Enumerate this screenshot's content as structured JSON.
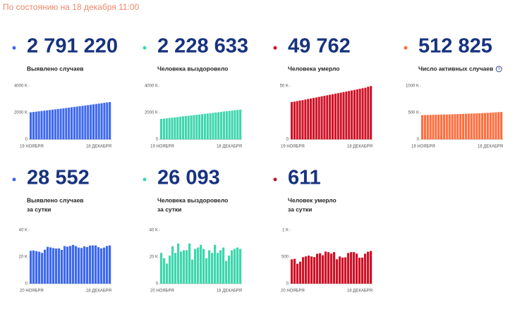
{
  "header": "По состоянию на 18 декабря 11:00",
  "chart_data": [
    {
      "type": "bar",
      "total": "2 791 220",
      "subtitle_lines": [
        "Выявлено случаев"
      ],
      "color": "#3d68f0",
      "categories": [
        "19 НОЯБРЯ",
        null,
        null,
        null,
        null,
        null,
        null,
        null,
        null,
        null,
        null,
        null,
        null,
        null,
        null,
        null,
        null,
        null,
        null,
        null,
        null,
        null,
        null,
        null,
        null,
        null,
        null,
        null,
        null,
        "18 ДЕКАБРЯ"
      ],
      "values": [
        2023,
        2048,
        2072,
        2096,
        2121,
        2145,
        2170,
        2195,
        2220,
        2245,
        2270,
        2295,
        2321,
        2347,
        2373,
        2400,
        2427,
        2453,
        2480,
        2507,
        2535,
        2562,
        2590,
        2618,
        2646,
        2674,
        2703,
        2733,
        2762,
        2791
      ],
      "ylim": [
        0,
        4000
      ],
      "yticks": [
        0,
        {
          "value": 2000,
          "label": "2000 K"
        },
        {
          "value": 4000,
          "label": "4000 K"
        }
      ]
    },
    {
      "type": "bar",
      "total": "2 228 633",
      "subtitle_lines": [
        "Человека выздоровело"
      ],
      "color": "#3ed6ad",
      "categories": [
        "19 НОЯБРЯ",
        null,
        null,
        null,
        null,
        null,
        null,
        null,
        null,
        null,
        null,
        null,
        null,
        null,
        null,
        null,
        null,
        null,
        null,
        null,
        null,
        null,
        null,
        null,
        null,
        null,
        null,
        null,
        null,
        "18 ДЕКАБРЯ"
      ],
      "values": [
        1528,
        1551,
        1575,
        1598,
        1622,
        1646,
        1670,
        1694,
        1718,
        1742,
        1766,
        1790,
        1814,
        1838,
        1862,
        1886,
        1910,
        1934,
        1958,
        1983,
        2008,
        2033,
        2058,
        2083,
        2107,
        2132,
        2156,
        2181,
        2205,
        2229
      ],
      "ylim": [
        0,
        4000
      ],
      "yticks": [
        0,
        {
          "value": 2000,
          "label": "2000 K"
        },
        {
          "value": 4000,
          "label": "4000 K"
        }
      ]
    },
    {
      "type": "bar",
      "total": "49 762",
      "subtitle_lines": [
        "Человека умерло"
      ],
      "color": "#cf1126",
      "categories": [
        "19 НОЯБРЯ",
        null,
        null,
        null,
        null,
        null,
        null,
        null,
        null,
        null,
        null,
        null,
        null,
        null,
        null,
        null,
        null,
        null,
        null,
        null,
        null,
        null,
        null,
        null,
        null,
        null,
        null,
        null,
        null,
        "18 ДЕКАБРЯ"
      ],
      "values": [
        34.9,
        35.3,
        35.8,
        36.3,
        36.7,
        37.2,
        37.7,
        38.2,
        38.7,
        39.2,
        39.7,
        40.2,
        40.7,
        41.2,
        41.7,
        42.2,
        42.7,
        43.2,
        43.7,
        44.2,
        44.7,
        45.2,
        45.7,
        46.2,
        46.8,
        47.3,
        47.8,
        48.3,
        49.2,
        49.8
      ],
      "ylim": [
        0,
        50
      ],
      "yticks": [
        0,
        {
          "value": 50,
          "label": "50 K"
        }
      ]
    },
    {
      "type": "bar",
      "total": "512 825",
      "subtitle_lines": [
        "Число активных случаев"
      ],
      "color": "#ff6d3f",
      "categories": [
        "19 НОЯБРЯ",
        null,
        null,
        null,
        null,
        null,
        null,
        null,
        null,
        null,
        null,
        null,
        null,
        null,
        null,
        null,
        null,
        null,
        null,
        null,
        null,
        null,
        null,
        null,
        null,
        null,
        null,
        null,
        null,
        "18 ДЕКАБРЯ"
      ],
      "values": [
        453,
        455,
        457,
        458,
        459,
        461,
        462,
        464,
        465,
        466,
        468,
        469,
        471,
        473,
        475,
        477,
        479,
        481,
        483,
        485,
        487,
        489,
        491,
        494,
        497,
        500,
        503,
        506,
        509,
        513
      ],
      "ylim": [
        0,
        1000
      ],
      "yticks": [
        0,
        {
          "value": 500,
          "label": "500 K"
        },
        {
          "value": 1000,
          "label": "1000 K"
        }
      ]
    },
    {
      "type": "bar",
      "total": "28 552",
      "subtitle_lines": [
        "Выявлено случаев",
        "за сутки"
      ],
      "color": "#3d68f0",
      "categories": [
        "20 НОЯБРЯ",
        null,
        null,
        null,
        null,
        null,
        null,
        null,
        null,
        null,
        null,
        null,
        null,
        null,
        null,
        null,
        null,
        null,
        null,
        null,
        null,
        null,
        null,
        null,
        null,
        null,
        null,
        null,
        "18 ДЕКАБРЯ"
      ],
      "values": [
        24.6,
        24.8,
        24.3,
        23.9,
        23.0,
        25.4,
        27.5,
        27.1,
        26.6,
        26.3,
        26.4,
        25.3,
        28.1,
        27.7,
        28.2,
        29.0,
        28.1,
        27.0,
        26.7,
        27.9,
        27.4,
        28.5,
        28.6,
        28.6,
        27.3,
        26.4,
        27.0,
        28.2,
        28.6
      ],
      "ylim": [
        0,
        40
      ],
      "yticks": [
        0,
        {
          "value": 20,
          "label": "20 K"
        },
        {
          "value": 40,
          "label": "40 K"
        }
      ]
    },
    {
      "type": "bar",
      "total": "26 093",
      "subtitle_lines": [
        "Человека выздоровело",
        "за сутки"
      ],
      "color": "#3ed6ad",
      "categories": [
        "20 НОЯБРЯ",
        null,
        null,
        null,
        null,
        null,
        null,
        null,
        null,
        null,
        null,
        null,
        null,
        null,
        null,
        null,
        null,
        null,
        null,
        null,
        null,
        null,
        null,
        null,
        null,
        null,
        null,
        null,
        "18 ДЕКАБРЯ"
      ],
      "values": [
        23,
        19,
        15,
        21,
        28,
        23,
        30,
        24,
        25,
        25,
        30,
        18,
        26,
        27,
        29,
        26,
        19,
        25,
        23,
        29,
        23,
        25,
        27,
        17,
        21,
        25,
        26,
        27,
        26
      ],
      "ylim": [
        0,
        40
      ],
      "yticks": [
        0,
        {
          "value": 20,
          "label": "20 K"
        },
        {
          "value": 40,
          "label": "40 K"
        }
      ]
    },
    {
      "type": "bar",
      "total": "611",
      "subtitle_lines": [
        "Человек умерло",
        "за сутки"
      ],
      "color": "#cf1126",
      "categories": [
        "20 НОЯБРЯ",
        null,
        null,
        null,
        null,
        null,
        null,
        null,
        null,
        null,
        null,
        null,
        null,
        null,
        null,
        null,
        null,
        null,
        null,
        null,
        null,
        null,
        null,
        null,
        null,
        null,
        null,
        null,
        "18 ДЕКАБРЯ"
      ],
      "values": [
        455,
        464,
        372,
        411,
        496,
        510,
        524,
        508,
        498,
        559,
        569,
        532,
        600,
        589,
        562,
        590,
        456,
        508,
        488,
        493,
        573,
        589,
        590,
        562,
        484,
        488,
        560,
        597,
        611
      ],
      "ylim": [
        0,
        1000
      ],
      "yticks": [
        0,
        500,
        {
          "value": 1000,
          "label": "1 K"
        }
      ]
    }
  ]
}
